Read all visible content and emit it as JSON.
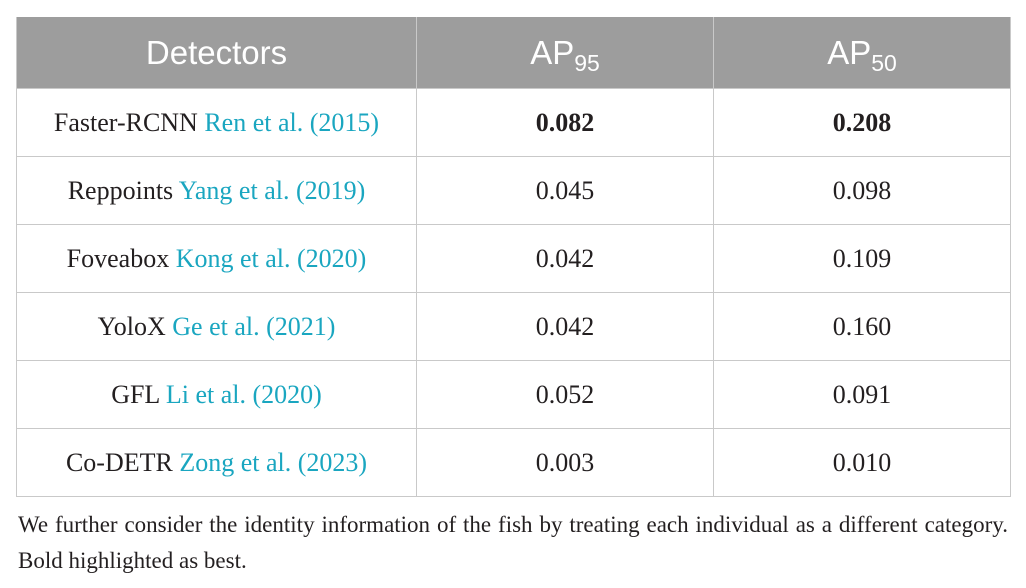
{
  "table": {
    "headers": [
      {
        "main": "Detectors",
        "sub": ""
      },
      {
        "main": "AP",
        "sub": "95"
      },
      {
        "main": "AP",
        "sub": "50"
      }
    ],
    "rows": [
      {
        "name": "Faster-RCNN",
        "cite": "Ren et al. (2015)",
        "ap95": "0.082",
        "ap50": "0.208",
        "best": true
      },
      {
        "name": "Reppoints",
        "cite": "Yang et al. (2019)",
        "ap95": "0.045",
        "ap50": "0.098",
        "best": false
      },
      {
        "name": "Foveabox",
        "cite": "Kong et al. (2020)",
        "ap95": "0.042",
        "ap50": "0.109",
        "best": false
      },
      {
        "name": "YoloX",
        "cite": "Ge et al. (2021)",
        "ap95": "0.042",
        "ap50": "0.160",
        "best": false
      },
      {
        "name": "GFL",
        "cite": "Li et al. (2020)",
        "ap95": "0.052",
        "ap50": "0.091",
        "best": false
      },
      {
        "name": "Co-DETR",
        "cite": "Zong et al. (2023)",
        "ap95": "0.003",
        "ap50": "0.010",
        "best": false
      }
    ]
  },
  "caption": "We further consider the identity information of the fish by treating each individual as a different category. Bold highlighted as best.",
  "colors": {
    "header_bg": "#9d9d9d",
    "citation_link": "#1aa6c0",
    "grid_line": "#c9c9c9"
  }
}
